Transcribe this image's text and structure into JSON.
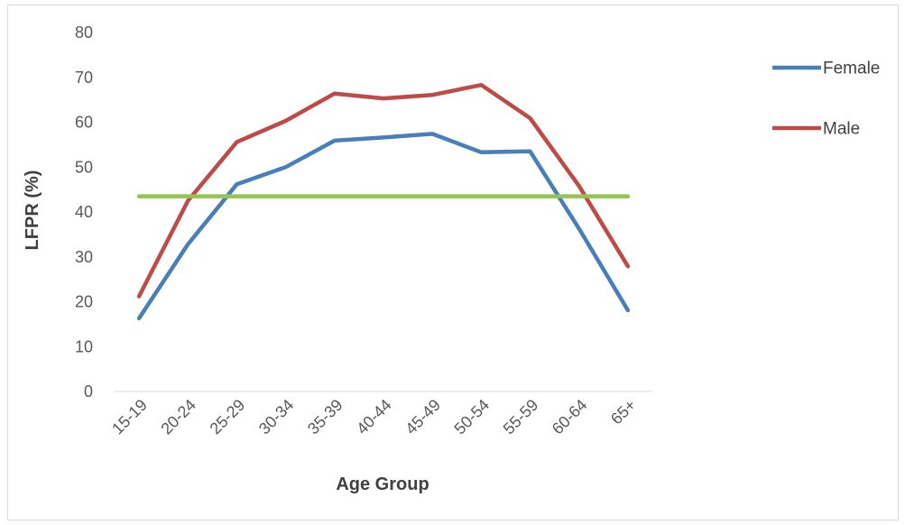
{
  "chart_data": {
    "type": "line",
    "title": "",
    "xlabel": "Age Group",
    "ylabel": "LFPR (%)",
    "ylim": [
      0,
      80
    ],
    "yticks": [
      "0",
      "10",
      "20",
      "30",
      "40",
      "50",
      "60",
      "70",
      "80"
    ],
    "categories": [
      "15-19",
      "20-24",
      "25-29",
      "30-34",
      "35-39",
      "40-44",
      "45-49",
      "50-54",
      "55-59",
      "60-64",
      "65+"
    ],
    "series": [
      {
        "name": "Female",
        "color": "#4a7ebb",
        "values": [
          16.3,
          32.8,
          46.2,
          50.0,
          55.9,
          56.6,
          57.4,
          53.3,
          53.5,
          36.3,
          18.1
        ]
      },
      {
        "name": "Male",
        "color": "#be4b48",
        "values": [
          21.2,
          42.5,
          55.6,
          60.3,
          66.4,
          65.3,
          66.1,
          68.3,
          60.9,
          45.8,
          27.9
        ]
      },
      {
        "name": "",
        "color": "#92c353",
        "values": [
          43.5,
          43.5,
          43.5,
          43.5,
          43.5,
          43.5,
          43.5,
          43.5,
          43.5,
          43.5,
          43.5
        ]
      }
    ],
    "grid": false,
    "legend_position": "right"
  }
}
